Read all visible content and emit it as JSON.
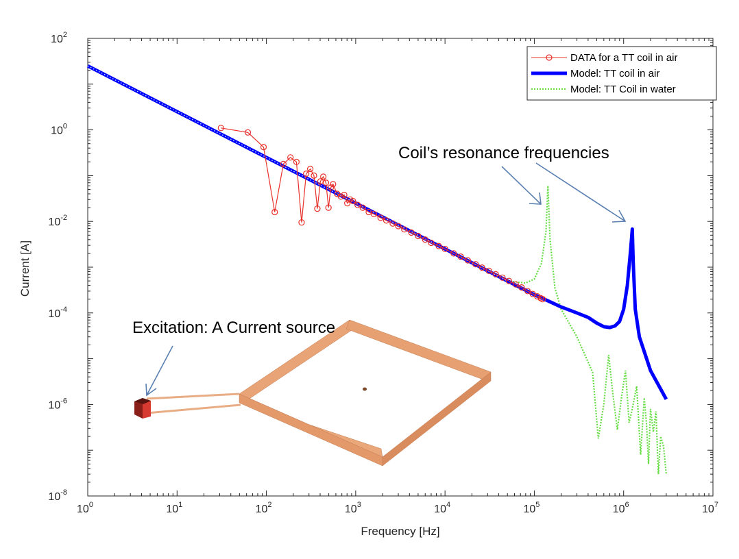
{
  "chart_data": {
    "type": "line",
    "xlabel": "Frequency [Hz]",
    "ylabel": "Current [A]",
    "xscale": "log",
    "yscale": "log",
    "xlim": [
      1,
      10000000
    ],
    "ylim": [
      1e-08,
      100
    ],
    "x_ticks": [
      {
        "base": "10",
        "exp": "0"
      },
      {
        "base": "10",
        "exp": "1"
      },
      {
        "base": "10",
        "exp": "2"
      },
      {
        "base": "10",
        "exp": "3"
      },
      {
        "base": "10",
        "exp": "4"
      },
      {
        "base": "10",
        "exp": "5"
      },
      {
        "base": "10",
        "exp": "6"
      },
      {
        "base": "10",
        "exp": "7"
      }
    ],
    "y_ticks": [
      {
        "base": "10",
        "exp": "-8"
      },
      {
        "base": "10",
        "exp": "-6"
      },
      {
        "base": "10",
        "exp": "-4"
      },
      {
        "base": "10",
        "exp": "-2"
      },
      {
        "base": "10",
        "exp": "0"
      },
      {
        "base": "10",
        "exp": "2"
      }
    ],
    "grid": false,
    "legend_position": "top-right",
    "legend": [
      "DATA for a TT coil in air",
      "Model: TT coil in air",
      "Model: TT Coil in water"
    ],
    "series": [
      {
        "name": "DATA for a TT coil in air",
        "color": "#e8302a",
        "style": "line-with-circle-markers",
        "points": [
          [
            31,
            1.1
          ],
          [
            62,
            0.88
          ],
          [
            93,
            0.42
          ],
          [
            124,
            0.016
          ],
          [
            155,
            0.18
          ],
          [
            186,
            0.25
          ],
          [
            217,
            0.2
          ],
          [
            248,
            0.0095
          ],
          [
            279,
            0.11
          ],
          [
            310,
            0.14
          ],
          [
            341,
            0.1
          ],
          [
            372,
            0.019
          ],
          [
            403,
            0.075
          ],
          [
            434,
            0.095
          ],
          [
            465,
            0.07
          ],
          [
            496,
            0.02
          ],
          [
            527,
            0.055
          ],
          [
            558,
            0.065
          ],
          [
            620,
            0.04
          ],
          [
            682,
            0.035
          ],
          [
            744,
            0.038
          ],
          [
            806,
            0.025
          ],
          [
            868,
            0.03
          ],
          [
            930,
            0.028
          ],
          [
            1050,
            0.023
          ],
          [
            1200,
            0.02
          ],
          [
            1400,
            0.016
          ],
          [
            1600,
            0.0145
          ],
          [
            1900,
            0.012
          ],
          [
            2200,
            0.0105
          ],
          [
            2600,
            0.009
          ],
          [
            3000,
            0.0079
          ],
          [
            3500,
            0.0067
          ],
          [
            4200,
            0.0057
          ],
          [
            5000,
            0.0048
          ],
          [
            6000,
            0.004
          ],
          [
            7000,
            0.0034
          ],
          [
            8500,
            0.0029
          ],
          [
            10000,
            0.0025
          ],
          [
            12500,
            0.002
          ],
          [
            15000,
            0.0017
          ],
          [
            18000,
            0.00141
          ],
          [
            22000,
            0.00116
          ],
          [
            26000,
            0.00098
          ],
          [
            31000,
            0.00083
          ],
          [
            37000,
            0.0007
          ],
          [
            44000,
            0.00059
          ],
          [
            52000,
            0.0005
          ],
          [
            62000,
            0.00042
          ],
          [
            72000,
            0.00036
          ],
          [
            84000,
            0.0003
          ],
          [
            96000,
            0.00026
          ],
          [
            108000,
            0.00023
          ],
          [
            118000,
            0.00021
          ],
          [
            124000,
            0.0002
          ]
        ]
      },
      {
        "name": "Model: TT coil in air",
        "color": "#0000ff",
        "style": "thick-solid",
        "points": [
          [
            1,
            25
          ],
          [
            10,
            2.5
          ],
          [
            100,
            0.25
          ],
          [
            1000,
            0.025
          ],
          [
            10000,
            0.0025
          ],
          [
            50000,
            0.0005
          ],
          [
            100000,
            0.00025
          ],
          [
            150000,
            0.000175
          ],
          [
            200000,
            0.000135
          ],
          [
            300000,
            0.0001
          ],
          [
            400000,
            8e-05
          ],
          [
            500000,
            6e-05
          ],
          [
            600000,
            5e-05
          ],
          [
            700000,
            4.8e-05
          ],
          [
            800000,
            5.2e-05
          ],
          [
            900000,
            6.5e-05
          ],
          [
            1000000,
            0.00012
          ],
          [
            1100000,
            0.0004
          ],
          [
            1200000,
            0.0025
          ],
          [
            1250000,
            0.0068
          ],
          [
            1280000,
            0.0013
          ],
          [
            1350000,
            0.00012
          ],
          [
            1500000,
            3e-05
          ],
          [
            2000000,
            5.5e-06
          ],
          [
            3000000,
            1.3e-06
          ]
        ]
      },
      {
        "name": "Model: TT Coil in water",
        "color": "#66dd44",
        "style": "dotted",
        "points": [
          [
            1,
            25
          ],
          [
            10,
            2.5
          ],
          [
            100,
            0.25
          ],
          [
            1000,
            0.025
          ],
          [
            10000,
            0.0025
          ],
          [
            50000,
            0.0005
          ],
          [
            80000,
            0.00045
          ],
          [
            100000,
            0.00055
          ],
          [
            120000,
            0.0012
          ],
          [
            135000,
            0.006
          ],
          [
            142000,
            0.06
          ],
          [
            150000,
            0.004
          ],
          [
            170000,
            0.00035
          ],
          [
            200000,
            0.00012
          ],
          [
            300000,
            3e-05
          ],
          [
            450000,
            5e-06
          ],
          [
            520000,
            1.8e-07
          ],
          [
            600000,
            1e-06
          ],
          [
            680000,
            1.2e-05
          ],
          [
            750000,
            2e-06
          ],
          [
            850000,
            2.8e-07
          ],
          [
            950000,
            1.5e-06
          ],
          [
            1050000,
            5.5e-06
          ],
          [
            1150000,
            4e-07
          ],
          [
            1250000,
            8e-07
          ],
          [
            1400000,
            2.5e-06
          ],
          [
            1550000,
            8e-08
          ],
          [
            1700000,
            1.4e-06
          ],
          [
            1800000,
            4e-07
          ],
          [
            1900000,
            5e-08
          ],
          [
            2000000,
            8e-07
          ],
          [
            2150000,
            2.5e-07
          ],
          [
            2300000,
            7e-07
          ],
          [
            2450000,
            3e-08
          ],
          [
            2600000,
            2e-07
          ],
          [
            2800000,
            1.2e-07
          ],
          [
            3000000,
            3e-08
          ]
        ]
      }
    ],
    "annotations": [
      {
        "text": "Coil’s resonance frequencies"
      },
      {
        "text": "Excitation: A Current source"
      }
    ]
  }
}
